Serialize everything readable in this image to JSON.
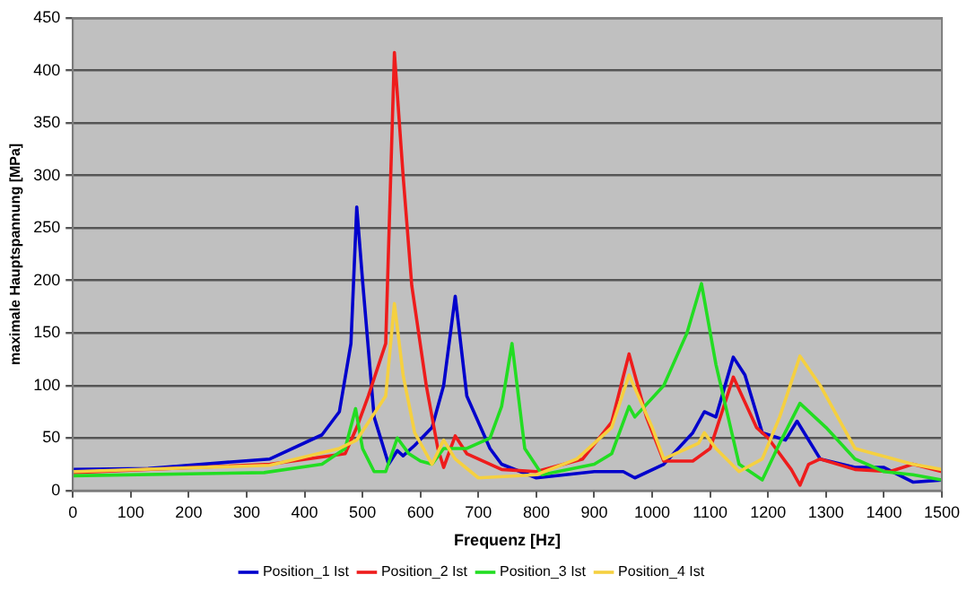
{
  "chart_data": {
    "type": "line",
    "xlabel": "Frequenz [Hz]",
    "ylabel": "maximale Hauptspannung [MPa]",
    "xlim": [
      0,
      1500
    ],
    "xticks": [
      0,
      100,
      200,
      300,
      400,
      500,
      600,
      700,
      800,
      900,
      1000,
      1100,
      1200,
      1300,
      1400,
      1500
    ],
    "ylim": [
      0,
      450
    ],
    "yticks": [
      0,
      50,
      100,
      150,
      200,
      250,
      300,
      350,
      400,
      450
    ],
    "grid": "y",
    "legend": "bottom",
    "marker": "none",
    "line_style": "solid",
    "series": [
      {
        "name": "Position_1 Ist",
        "color": "#0000cc",
        "x": [
          0,
          130,
          340,
          430,
          460,
          480,
          490,
          500,
          520,
          545,
          560,
          570,
          590,
          620,
          640,
          660,
          680,
          720,
          740,
          800,
          900,
          950,
          970,
          1020,
          1070,
          1090,
          1110,
          1140,
          1160,
          1190,
          1230,
          1250,
          1290,
          1350,
          1400,
          1450,
          1500
        ],
        "values": [
          20,
          21,
          30,
          53,
          75,
          140,
          270,
          200,
          70,
          25,
          38,
          33,
          43,
          60,
          100,
          185,
          90,
          40,
          25,
          12,
          18,
          18,
          12,
          25,
          55,
          75,
          70,
          127,
          110,
          55,
          48,
          66,
          30,
          22,
          22,
          8,
          10
        ]
      },
      {
        "name": "Position_2 Ist",
        "color": "#ee1c1c",
        "x": [
          0,
          340,
          470,
          490,
          510,
          540,
          555,
          570,
          585,
          610,
          630,
          640,
          660,
          680,
          740,
          800,
          880,
          930,
          960,
          990,
          1020,
          1070,
          1100,
          1140,
          1180,
          1200,
          1240,
          1255,
          1270,
          1290,
          1350,
          1410,
          1450,
          1500
        ],
        "values": [
          17,
          25,
          35,
          60,
          90,
          140,
          417,
          300,
          195,
          100,
          40,
          22,
          52,
          35,
          20,
          18,
          30,
          65,
          130,
          70,
          28,
          28,
          40,
          108,
          60,
          50,
          20,
          5,
          25,
          30,
          20,
          18,
          25,
          18
        ]
      },
      {
        "name": "Position_3 Ist",
        "color": "#22dd22",
        "x": [
          0,
          330,
          430,
          470,
          488,
          500,
          520,
          540,
          560,
          580,
          600,
          620,
          640,
          680,
          720,
          740,
          758,
          780,
          810,
          900,
          930,
          960,
          970,
          1020,
          1060,
          1085,
          1110,
          1150,
          1190,
          1220,
          1255,
          1300,
          1350,
          1400,
          1450,
          1500
        ],
        "values": [
          14,
          17,
          25,
          40,
          78,
          40,
          18,
          18,
          50,
          35,
          28,
          25,
          40,
          40,
          50,
          80,
          140,
          40,
          15,
          25,
          35,
          80,
          70,
          100,
          150,
          197,
          120,
          25,
          10,
          45,
          83,
          60,
          30,
          18,
          15,
          10
        ]
      },
      {
        "name": "Position_4 Ist",
        "color": "#f5d040",
        "x": [
          0,
          340,
          460,
          490,
          540,
          555,
          570,
          590,
          620,
          640,
          660,
          700,
          800,
          870,
          930,
          960,
          1000,
          1020,
          1080,
          1090,
          1110,
          1150,
          1190,
          1220,
          1255,
          1290,
          1350,
          1450,
          1500
        ],
        "values": [
          18,
          24,
          40,
          48,
          90,
          178,
          110,
          55,
          25,
          48,
          30,
          12,
          15,
          30,
          60,
          110,
          60,
          30,
          45,
          55,
          40,
          18,
          30,
          70,
          128,
          100,
          40,
          25,
          20
        ]
      }
    ]
  }
}
